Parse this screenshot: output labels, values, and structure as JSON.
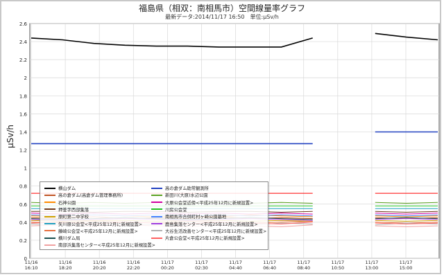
{
  "title": "福島県（相双：南相馬市）空間線量率グラフ",
  "subtitle": "最新データ:2014/11/17 16:50　単位:μSv/h",
  "ylabel": "μSv/h",
  "chart_data": {
    "type": "line",
    "ylim": [
      0,
      2.6
    ],
    "y_ticks": [
      "0",
      "0.2",
      "0.4",
      "0.6",
      "0.8",
      "1",
      "1.2",
      "1.4",
      "1.6",
      "1.8",
      "2",
      "2.2",
      "2.4",
      "2.6"
    ],
    "x_ticks": [
      "11/16\n16:10",
      "11/16\n18:20",
      "11/16\n20:20",
      "11/16\n22:20",
      "11/17\n00:20",
      "11/17\n02:30",
      "11/17\n04:40",
      "11/17\n06:40",
      "11/17\n08:40",
      "11/17\n10:50",
      "11/17\n13:00",
      "11/17\n15:00"
    ],
    "series": [
      {
        "name": "横山ダム",
        "color": "#000000",
        "values": [
          2.44,
          2.42,
          2.38,
          2.36,
          2.35,
          2.35,
          2.34,
          2.34,
          2.34,
          2.44,
          null,
          2.49,
          2.45,
          2.42
        ]
      },
      {
        "name": "高の倉ダム(高倉ダム管理事務所)",
        "color": "#c05020",
        "values": [
          0.45,
          0.44,
          0.46,
          0.44,
          0.45,
          0.44,
          0.46,
          0.44,
          0.45,
          0.44,
          null,
          0.45,
          0.44,
          0.45
        ]
      },
      {
        "name": "石神公園",
        "color": "#ff8c00",
        "values": [
          0.47,
          0.46,
          0.48,
          0.47,
          0.46,
          0.47,
          0.46,
          0.48,
          0.47,
          0.46,
          null,
          0.47,
          0.46,
          0.47
        ]
      },
      {
        "name": "押釜字西部集落",
        "color": "#6e3a1a",
        "values": [
          0.52,
          0.52,
          0.51,
          0.52,
          0.52,
          0.51,
          0.52,
          0.52,
          0.51,
          0.52,
          null,
          0.52,
          0.51,
          0.52
        ]
      },
      {
        "name": "原町第二中学校",
        "color": "#d1a000",
        "values": [
          0.42,
          0.41,
          0.42,
          0.42,
          0.41,
          0.42,
          0.42,
          0.41,
          0.42,
          0.41,
          null,
          0.42,
          0.41,
          0.42
        ]
      },
      {
        "name": "矢川原公会堂<平成25年12月に新規設置>",
        "color": "#20a0c0",
        "values": [
          0.55,
          0.55,
          0.55,
          0.55,
          0.55,
          0.55,
          0.55,
          0.55,
          0.55,
          0.55,
          null,
          0.55,
          0.55,
          0.55
        ]
      },
      {
        "name": "藤崎公会堂<平成25年12月に新規設置>",
        "color": "#e87040",
        "values": [
          0.4,
          0.39,
          0.41,
          0.4,
          0.39,
          0.41,
          0.4,
          0.39,
          0.4,
          0.41,
          null,
          0.4,
          0.39,
          0.4
        ]
      },
      {
        "name": "横川ダム局",
        "color": "#1a5050",
        "values": [
          0.44,
          0.43,
          0.44,
          0.45,
          0.44,
          0.43,
          0.44,
          0.45,
          0.44,
          0.43,
          null,
          0.44,
          0.45,
          0.44
        ]
      },
      {
        "name": "南部浜集落センター<平成25年12月に新規設置>",
        "color": "#f0a0a0",
        "values": [
          0.36,
          0.37,
          0.35,
          0.37,
          0.36,
          0.35,
          0.37,
          0.36,
          0.35,
          0.37,
          null,
          0.36,
          0.35,
          0.36
        ]
      },
      {
        "name": "高の倉ダム助常観測所",
        "color": "#2040c0",
        "values": [
          1.27,
          1.27,
          1.27,
          1.27,
          1.27,
          1.27,
          1.27,
          1.27,
          1.27,
          1.27,
          null,
          1.4,
          1.4,
          1.4
        ]
      },
      {
        "name": "新田川(大原)水辺公園",
        "color": "#5aa020",
        "values": [
          0.62,
          0.61,
          0.62,
          0.61,
          0.62,
          0.61,
          0.62,
          0.61,
          0.62,
          0.61,
          null,
          0.62,
          0.61,
          0.62
        ]
      },
      {
        "name": "大原公会堂近傍<平成25年12月に新規設置>",
        "color": "#d000a0",
        "values": [
          0.5,
          0.49,
          0.5,
          0.49,
          0.5,
          0.49,
          0.5,
          0.49,
          0.5,
          0.49,
          null,
          0.5,
          0.49,
          0.5
        ]
      },
      {
        "name": "川房公会堂",
        "color": "#20c020",
        "values": [
          0.58,
          0.58,
          0.58,
          0.58,
          0.58,
          0.58,
          0.58,
          0.58,
          0.58,
          0.58,
          null,
          0.58,
          0.58,
          0.58
        ]
      },
      {
        "name": "南相馬市合併町村ヶ崎公園墓地",
        "color": "#4080ff",
        "values": [
          0.48,
          0.47,
          0.48,
          0.47,
          0.48,
          0.47,
          0.48,
          0.47,
          0.48,
          0.47,
          null,
          0.48,
          0.47,
          0.48
        ]
      },
      {
        "name": "鹿島集落センター<平成25年12月に新規設置>",
        "color": "#a040e0",
        "values": [
          0.43,
          0.42,
          0.43,
          0.44,
          0.43,
          0.42,
          0.43,
          0.44,
          0.43,
          0.42,
          null,
          0.43,
          0.44,
          0.43
        ]
      },
      {
        "name": "大谷生活改善センター<平成25年12月に新規設置>",
        "color": "#b0b0b0",
        "values": [
          0.38,
          0.37,
          0.39,
          0.38,
          0.37,
          0.39,
          0.38,
          0.37,
          0.39,
          0.38,
          null,
          0.37,
          0.39,
          0.38
        ]
      },
      {
        "name": "片倉公会堂<平成25年12月に新規設置>",
        "color": "#ff6060",
        "values": [
          0.39,
          0.4,
          0.38,
          0.4,
          0.39,
          0.38,
          0.4,
          0.39,
          0.38,
          0.4,
          null,
          0.39,
          0.38,
          0.39
        ]
      },
      {
        "name": "",
        "color": "#ff0000",
        "values": [
          0.72,
          0.72,
          0.72,
          0.72,
          0.72,
          0.72,
          0.72,
          0.72,
          0.72,
          0.72,
          null,
          0.72,
          0.72,
          0.72
        ]
      }
    ]
  }
}
